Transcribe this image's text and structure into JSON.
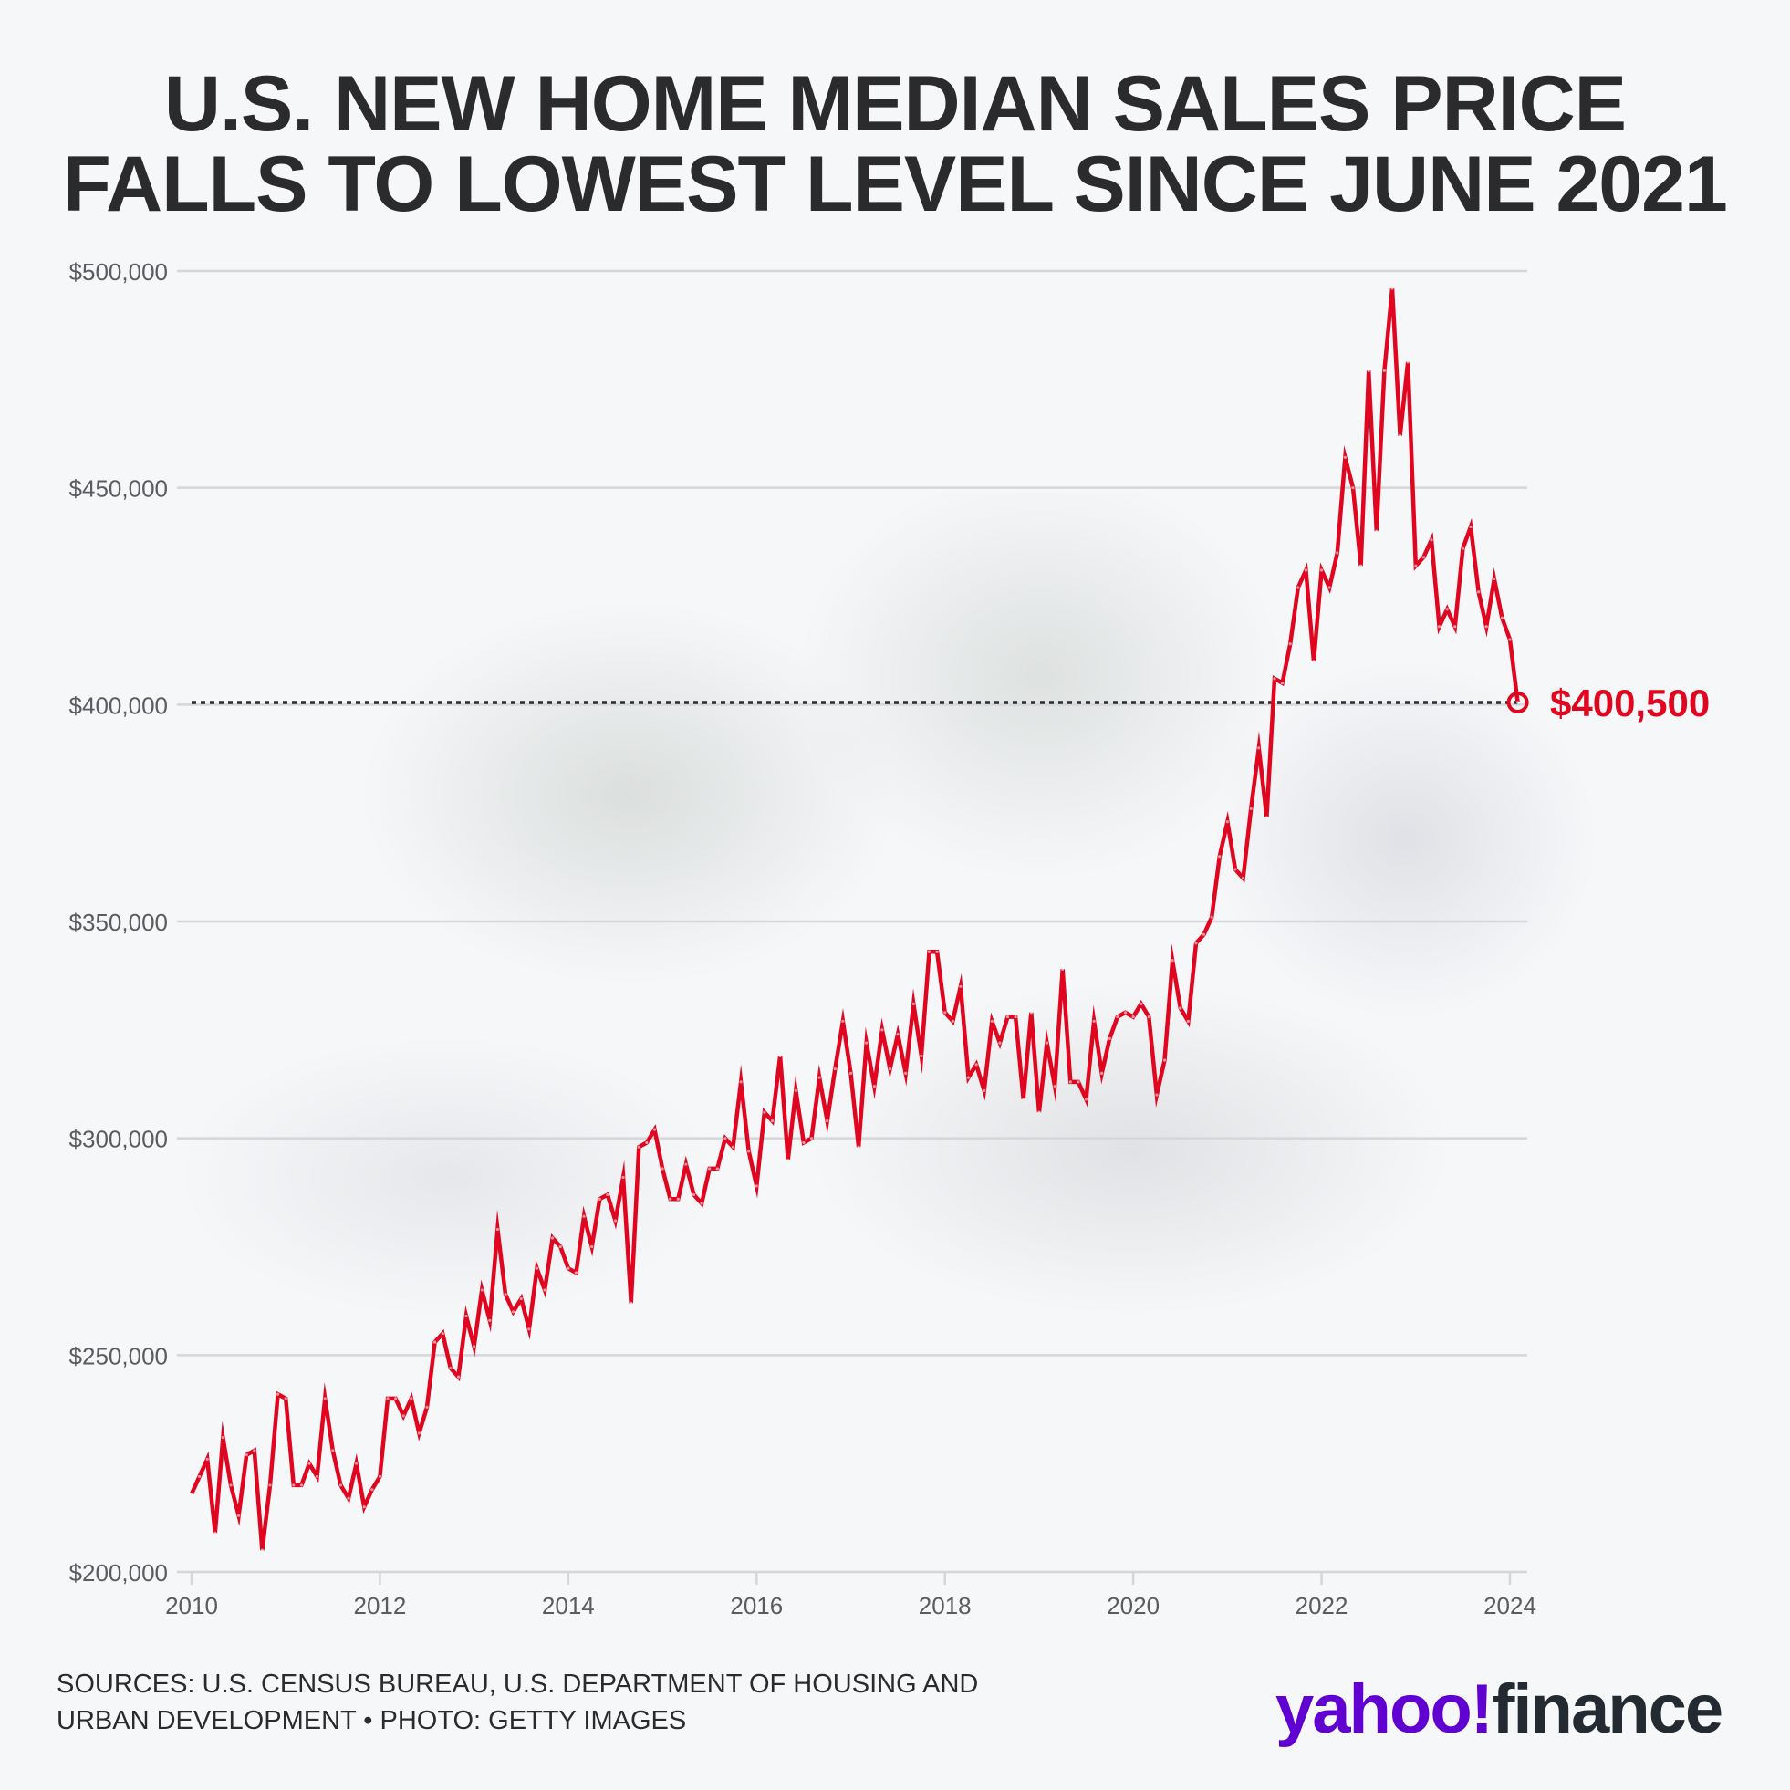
{
  "title": {
    "line1": "U.S. NEW HOME MEDIAN SALES PRICE",
    "line2": "FALLS TO LOWEST LEVEL SINCE JUNE 2021"
  },
  "footer": {
    "sources_line1": "SOURCES: U.S. CENSUS BUREAU, U.S. DEPARTMENT OF HOUSING AND",
    "sources_line2": "URBAN DEVELOPMENT • PHOTO: GETTY IMAGES",
    "logo_yahoo": "yahoo!",
    "logo_finance": "finance"
  },
  "colors": {
    "line": "#e0061f",
    "grid": "#d4d6da",
    "text": "#2b2b2d",
    "brand": "#6001d2"
  },
  "chart_data": {
    "type": "line",
    "title": "U.S. NEW HOME MEDIAN SALES PRICE FALLS TO LOWEST LEVEL SINCE JUNE 2021",
    "xlabel": "",
    "ylabel": "",
    "frequency": "monthly",
    "x_start": "2010-01",
    "x_end": "2024-02",
    "xlim": [
      2010,
      2024.2
    ],
    "ylim": [
      200000,
      500000
    ],
    "x_ticks": [
      "2010",
      "2012",
      "2014",
      "2016",
      "2018",
      "2020",
      "2022",
      "2024"
    ],
    "y_ticks": [
      "$200,000",
      "$250,000",
      "$300,000",
      "$350,000",
      "$400,000",
      "$450,000",
      "$500,000"
    ],
    "grid": "horizontal",
    "annotation": {
      "label": "$400,500",
      "value": 400500,
      "date": "2024-02"
    },
    "values": [
      218000,
      222000,
      226000,
      209000,
      231000,
      220000,
      213000,
      227000,
      228000,
      205000,
      220000,
      241000,
      240000,
      220000,
      220000,
      225000,
      222000,
      240000,
      228000,
      220000,
      217000,
      225000,
      215000,
      219000,
      222000,
      240000,
      240000,
      236000,
      240000,
      232000,
      238000,
      253000,
      255000,
      247000,
      245000,
      259000,
      252000,
      265000,
      258000,
      279000,
      264000,
      260000,
      263000,
      256000,
      270000,
      265000,
      277000,
      275000,
      270000,
      269000,
      282000,
      275000,
      286000,
      287000,
      281000,
      291000,
      262000,
      298000,
      299000,
      302000,
      293000,
      286000,
      286000,
      294000,
      287000,
      285000,
      293000,
      293000,
      300000,
      298000,
      313000,
      297000,
      289000,
      306000,
      304000,
      319000,
      295000,
      311000,
      299000,
      300000,
      314000,
      304000,
      316000,
      327000,
      315000,
      298000,
      322000,
      312000,
      325000,
      316000,
      324000,
      315000,
      331000,
      319000,
      343000,
      343000,
      329000,
      327000,
      335000,
      314000,
      317000,
      311000,
      327000,
      322000,
      328000,
      328000,
      309000,
      329000,
      306000,
      322000,
      312000,
      339000,
      313000,
      313000,
      309000,
      327000,
      315000,
      323000,
      328000,
      329000,
      328000,
      331000,
      328000,
      310000,
      318000,
      341000,
      330000,
      327000,
      345000,
      347000,
      351000,
      365000,
      373000,
      362000,
      360000,
      376000,
      390000,
      374000,
      406000,
      405000,
      414000,
      427000,
      431000,
      410000,
      431000,
      427000,
      435000,
      457000,
      450000,
      432000,
      477000,
      440000,
      477000,
      496000,
      462000,
      479000,
      432000,
      434000,
      438000,
      418000,
      422000,
      418000,
      436000,
      441000,
      426000,
      418000,
      429000,
      420000,
      415000,
      400500
    ]
  }
}
